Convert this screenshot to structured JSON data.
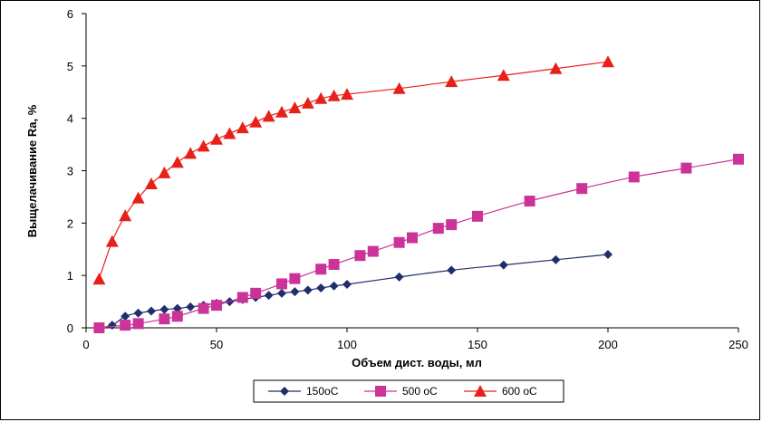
{
  "chart_data": {
    "type": "line",
    "title": "",
    "xlabel": "Объем дист. воды, мл",
    "ylabel": "Выщелачивание Ra, %",
    "xlim": [
      0,
      250
    ],
    "ylim": [
      0,
      6
    ],
    "xticks": [
      0,
      50,
      100,
      150,
      200,
      250
    ],
    "yticks": [
      0,
      1,
      2,
      3,
      4,
      5,
      6
    ],
    "grid": false,
    "legend_position": "bottom",
    "series": [
      {
        "name": "150",
        "unit": "oC",
        "color": "#1f2f6b",
        "marker": "diamond",
        "x": [
          5,
          10,
          15,
          20,
          25,
          30,
          35,
          40,
          45,
          50,
          55,
          60,
          65,
          70,
          75,
          80,
          85,
          90,
          95,
          100,
          120,
          140,
          160,
          180,
          200
        ],
        "y": [
          0.0,
          0.05,
          0.22,
          0.28,
          0.32,
          0.35,
          0.37,
          0.4,
          0.43,
          0.47,
          0.5,
          0.54,
          0.58,
          0.62,
          0.66,
          0.69,
          0.72,
          0.76,
          0.8,
          0.83,
          0.97,
          1.1,
          1.2,
          1.3,
          1.4
        ]
      },
      {
        "name": "500",
        "unit": " oC",
        "color": "#cc3399",
        "marker": "square",
        "x": [
          5,
          15,
          20,
          30,
          35,
          45,
          50,
          60,
          65,
          75,
          80,
          90,
          95,
          105,
          110,
          120,
          125,
          135,
          140,
          150,
          170,
          190,
          210,
          230,
          250
        ],
        "y": [
          0.0,
          0.05,
          0.08,
          0.17,
          0.22,
          0.37,
          0.43,
          0.58,
          0.66,
          0.84,
          0.94,
          1.12,
          1.21,
          1.38,
          1.46,
          1.63,
          1.72,
          1.9,
          1.97,
          2.13,
          2.42,
          2.66,
          2.88,
          3.05,
          3.22
        ]
      },
      {
        "name": "600",
        "unit": " oC",
        "color": "#e8201a",
        "marker": "triangle",
        "x": [
          5,
          10,
          15,
          20,
          25,
          30,
          35,
          40,
          45,
          50,
          55,
          60,
          65,
          70,
          75,
          80,
          85,
          90,
          95,
          100,
          120,
          140,
          160,
          180,
          200
        ],
        "y": [
          0.93,
          1.65,
          2.14,
          2.48,
          2.75,
          2.96,
          3.16,
          3.33,
          3.47,
          3.6,
          3.71,
          3.82,
          3.93,
          4.04,
          4.12,
          4.2,
          4.29,
          4.38,
          4.43,
          4.46,
          4.57,
          4.7,
          4.82,
          4.95,
          5.08
        ]
      }
    ]
  }
}
